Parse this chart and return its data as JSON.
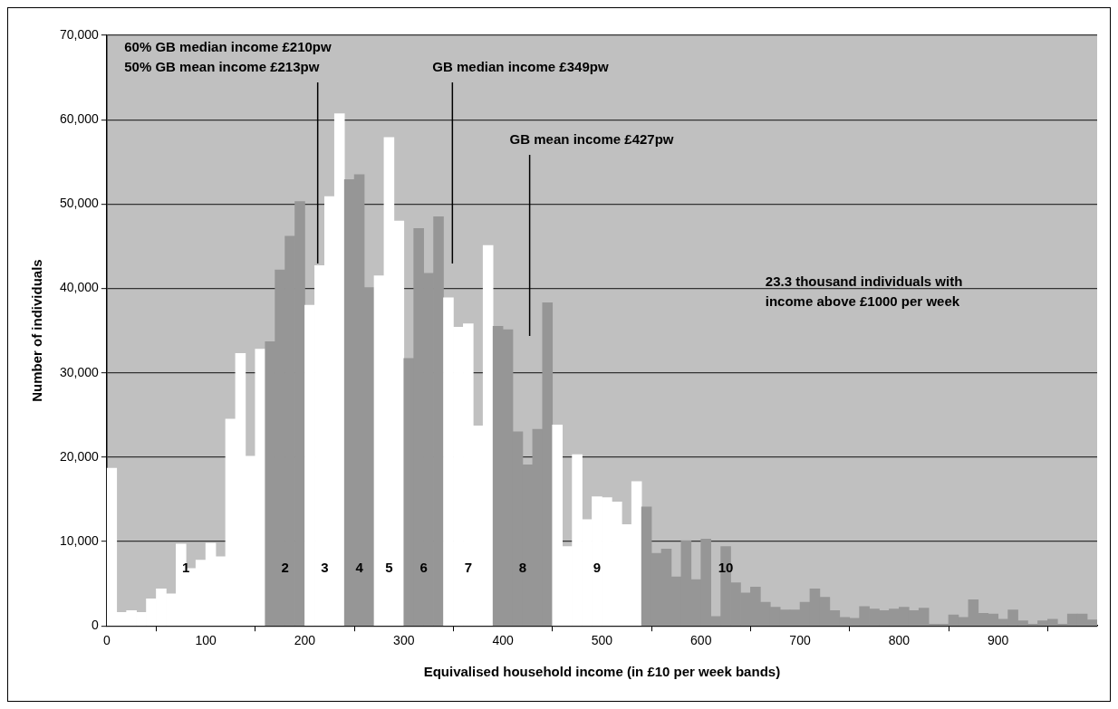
{
  "chart_data": {
    "type": "histogram",
    "xlabel": "Equivalised household income (in £10 per week bands)",
    "ylabel": "Number of individuals",
    "bins": [
      0,
      10,
      20,
      30,
      40,
      50,
      60,
      70,
      80,
      90,
      100,
      110,
      120,
      130,
      140,
      150,
      160,
      170,
      180,
      190,
      200,
      210,
      220,
      230,
      240,
      250,
      260,
      270,
      280,
      290,
      300,
      310,
      320,
      330,
      340,
      350,
      360,
      370,
      380,
      390,
      400,
      410,
      420,
      430,
      440,
      450,
      460,
      470,
      480,
      490,
      500,
      510,
      520,
      530,
      540,
      550,
      560,
      570,
      580,
      590,
      600,
      610,
      620,
      630,
      640,
      650,
      660,
      670,
      680,
      690,
      700,
      710,
      720,
      730,
      740,
      750,
      760,
      770,
      780,
      790,
      800,
      810,
      820,
      830,
      840,
      850,
      860,
      870,
      880,
      890,
      900,
      910,
      920,
      930,
      940,
      950,
      960,
      970,
      980,
      990,
      1000
    ],
    "values": [
      18700,
      1600,
      1800,
      1600,
      3200,
      4400,
      3800,
      9700,
      6800,
      7800,
      9800,
      8200,
      24500,
      32300,
      20100,
      32800,
      33700,
      42200,
      46200,
      50300,
      38000,
      42700,
      50900,
      60700,
      52900,
      53500,
      40100,
      41500,
      57900,
      48000,
      31700,
      47100,
      41800,
      48500,
      38900,
      35400,
      35800,
      23700,
      45100,
      35500,
      35100,
      23000,
      19100,
      23300,
      38300,
      23800,
      9400,
      20300,
      12600,
      15300,
      15200,
      14700,
      12000,
      17100,
      14100,
      8600,
      9100,
      5800,
      10100,
      5500,
      10300,
      1100,
      9400,
      5100,
      3900,
      4600,
      2800,
      2200,
      1900,
      1900,
      2800,
      4400,
      3400,
      1800,
      1000,
      900,
      2300,
      2000,
      1800,
      2000,
      2200,
      1800,
      2100,
      200,
      200,
      1300,
      1000,
      3100,
      1500,
      1400,
      800,
      1900,
      600,
      200,
      600,
      800,
      200,
      1400,
      1400,
      700
    ],
    "colors": [
      "#ffffff",
      "#ffffff",
      "#ffffff",
      "#ffffff",
      "#ffffff",
      "#ffffff",
      "#ffffff",
      "#ffffff",
      "#ffffff",
      "#ffffff",
      "#ffffff",
      "#ffffff",
      "#ffffff",
      "#ffffff",
      "#ffffff",
      "#ffffff",
      "#969696",
      "#969696",
      "#969696",
      "#969696",
      "#ffffff",
      "#ffffff",
      "#ffffff",
      "#ffffff",
      "#969696",
      "#969696",
      "#969696",
      "#ffffff",
      "#ffffff",
      "#ffffff",
      "#969696",
      "#969696",
      "#969696",
      "#969696",
      "#ffffff",
      "#ffffff",
      "#ffffff",
      "#ffffff",
      "#ffffff",
      "#969696",
      "#969696",
      "#969696",
      "#969696",
      "#969696",
      "#969696",
      "#ffffff",
      "#ffffff",
      "#ffffff",
      "#ffffff",
      "#ffffff",
      "#ffffff",
      "#ffffff",
      "#ffffff",
      "#ffffff",
      "#969696",
      "#969696",
      "#969696",
      "#969696",
      "#969696",
      "#969696",
      "#969696",
      "#969696",
      "#969696",
      "#969696",
      "#969696",
      "#969696",
      "#969696",
      "#969696",
      "#969696",
      "#969696",
      "#969696",
      "#969696",
      "#969696",
      "#969696",
      "#969696",
      "#969696",
      "#969696",
      "#969696",
      "#969696",
      "#969696",
      "#969696",
      "#969696",
      "#969696",
      "#969696",
      "#969696",
      "#969696",
      "#969696",
      "#969696",
      "#969696",
      "#969696",
      "#969696",
      "#969696",
      "#969696",
      "#969696",
      "#969696",
      "#969696",
      "#969696",
      "#969696",
      "#969696",
      "#969696"
    ],
    "xlim": [
      0,
      1000
    ],
    "xticks": [
      0,
      100,
      200,
      300,
      400,
      500,
      600,
      700,
      800,
      900
    ],
    "ylim": [
      0,
      70000
    ],
    "yticks": [
      {
        "value": 0,
        "label": "0"
      },
      {
        "value": 10000,
        "label": "10,000"
      },
      {
        "value": 20000,
        "label": "20,000"
      },
      {
        "value": 30000,
        "label": "30,000"
      },
      {
        "value": 40000,
        "label": "40,000"
      },
      {
        "value": 50000,
        "label": "50,000"
      },
      {
        "value": 60000,
        "label": "60,000"
      },
      {
        "value": 70000,
        "label": "70,000"
      }
    ],
    "grid": "y",
    "ref_lines": [
      {
        "axis": "x",
        "value": 213,
        "label": "60% GB median income £210pw\n50% GB mean income £213pw"
      },
      {
        "axis": "x",
        "value": 349,
        "label": "GB median income £349pw"
      },
      {
        "axis": "x",
        "value": 427,
        "label": "GB mean income £427pw"
      }
    ],
    "annotations": [
      "23.3 thousand individuals with income above £1000 per week",
      "1",
      "2",
      "3",
      "4",
      "5",
      "6",
      "7",
      "8",
      "9",
      "10"
    ]
  }
}
